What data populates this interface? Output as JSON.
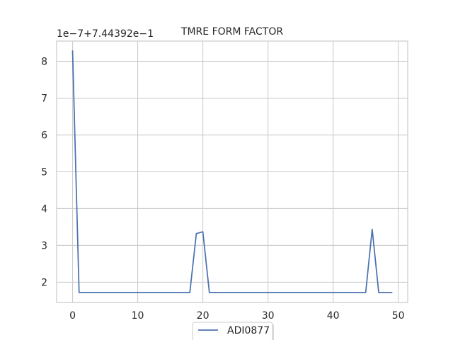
{
  "chart_data": {
    "type": "line",
    "title": "TMRE FORM FACTOR",
    "xlabel": "",
    "ylabel": "",
    "y_offset_label": "1e−7+7.44392e−1",
    "xlim": [
      -2.45,
      51.45
    ],
    "ylim": [
      1.45,
      8.55
    ],
    "x_ticks": [
      0,
      10,
      20,
      30,
      40,
      50
    ],
    "y_ticks": [
      2,
      3,
      4,
      5,
      6,
      7,
      8
    ],
    "grid": true,
    "legend_position": "bottom-center",
    "series": [
      {
        "name": "ADI0877",
        "color": "#4c72b0",
        "x": [
          0,
          1,
          2,
          3,
          4,
          5,
          6,
          7,
          8,
          9,
          10,
          11,
          12,
          13,
          14,
          15,
          16,
          17,
          18,
          19,
          20,
          21,
          22,
          23,
          24,
          25,
          26,
          27,
          28,
          29,
          30,
          31,
          32,
          33,
          34,
          35,
          36,
          37,
          38,
          39,
          40,
          41,
          42,
          43,
          44,
          45,
          46,
          47,
          48,
          49
        ],
        "values": [
          8.28,
          1.72,
          1.72,
          1.72,
          1.72,
          1.72,
          1.72,
          1.72,
          1.72,
          1.72,
          1.72,
          1.72,
          1.72,
          1.72,
          1.72,
          1.72,
          1.72,
          1.72,
          1.72,
          3.32,
          3.37,
          1.72,
          1.72,
          1.72,
          1.72,
          1.72,
          1.72,
          1.72,
          1.72,
          1.72,
          1.72,
          1.72,
          1.72,
          1.72,
          1.72,
          1.72,
          1.72,
          1.72,
          1.72,
          1.72,
          1.72,
          1.72,
          1.72,
          1.72,
          1.72,
          1.72,
          3.44,
          1.72,
          1.72,
          1.72
        ]
      }
    ]
  }
}
